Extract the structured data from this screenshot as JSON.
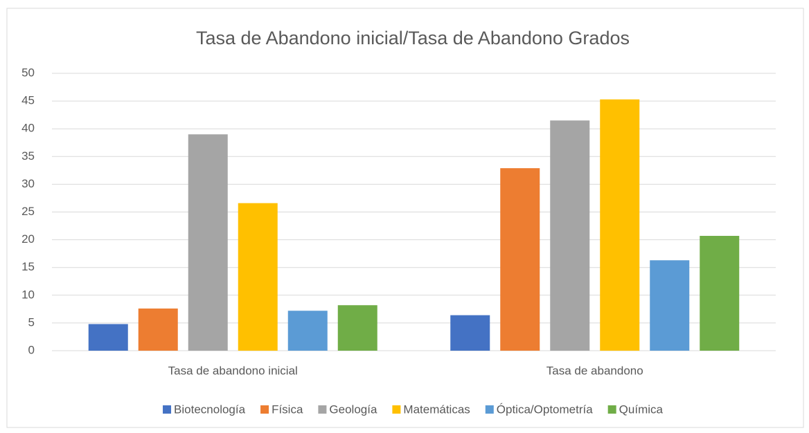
{
  "chart_data": {
    "type": "bar",
    "title": "Tasa de Abandono inicial/Tasa de Abandono Grados",
    "categories": [
      "Tasa de abandono inicial",
      "Tasa de abandono"
    ],
    "series": [
      {
        "name": "Biotecnología",
        "color": "#4472c4",
        "values": [
          4.8,
          6.4
        ]
      },
      {
        "name": "Física",
        "color": "#ed7d31",
        "values": [
          7.6,
          32.9
        ]
      },
      {
        "name": "Geología",
        "color": "#a5a5a5",
        "values": [
          39.0,
          41.5
        ]
      },
      {
        "name": "Matemáticas",
        "color": "#ffc000",
        "values": [
          26.6,
          45.3
        ]
      },
      {
        "name": "Óptica/Optometría",
        "color": "#5b9bd5",
        "values": [
          7.2,
          16.3
        ]
      },
      {
        "name": "Química",
        "color": "#70ad47",
        "values": [
          8.2,
          20.7
        ]
      }
    ],
    "ylim": [
      0,
      50
    ],
    "yticks": [
      0,
      5,
      10,
      15,
      20,
      25,
      30,
      35,
      40,
      45,
      50
    ],
    "grid": true,
    "legend": "bottom"
  }
}
